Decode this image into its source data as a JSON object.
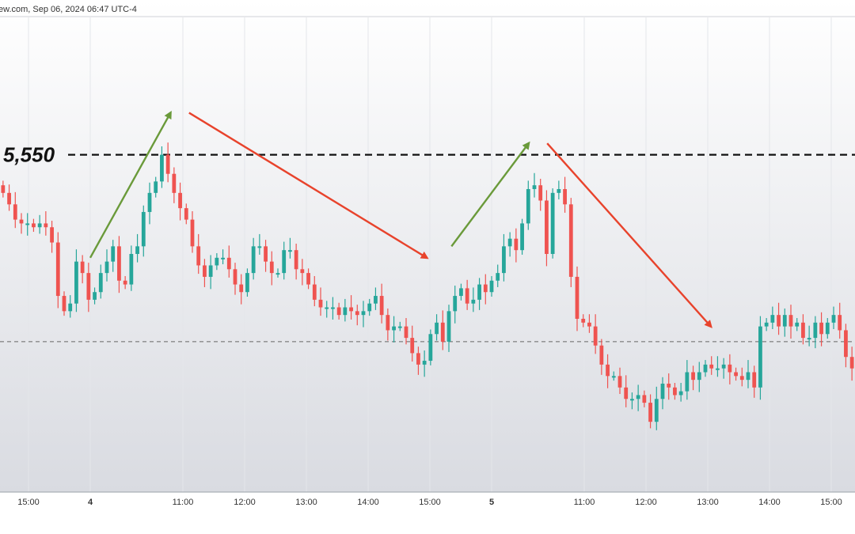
{
  "header": {
    "source_text": "ew.com, Sep 06, 2024 06:47 UTC-4"
  },
  "colors": {
    "up": "#26a69a",
    "down": "#ef5350",
    "arrow_up": "#6a9a3a",
    "arrow_down": "#e8432c",
    "level_line": "#111111",
    "ref_line": "#666666"
  },
  "chart_data": {
    "type": "candlestick",
    "title": "",
    "xlabel": "",
    "ylabel": "",
    "ylim": [
      5462,
      5586
    ],
    "x_ticks": [
      {
        "label": "15:00",
        "x": -1,
        "bold": false
      },
      {
        "label": "4",
        "x": 0,
        "bold": true
      },
      {
        "label": "11:00",
        "x": 1.5,
        "bold": false
      },
      {
        "label": "12:00",
        "x": 2.5,
        "bold": false
      },
      {
        "label": "13:00",
        "x": 3.5,
        "bold": false
      },
      {
        "label": "14:00",
        "x": 4.5,
        "bold": false
      },
      {
        "label": "15:00",
        "x": 5.5,
        "bold": false
      },
      {
        "label": "5",
        "x": 6.5,
        "bold": true
      },
      {
        "label": "11:00",
        "x": 8.0,
        "bold": false
      },
      {
        "label": "12:00",
        "x": 9.0,
        "bold": false
      },
      {
        "label": "13:00",
        "x": 10.0,
        "bold": false
      },
      {
        "label": "14:00",
        "x": 11.0,
        "bold": false
      },
      {
        "label": "15:00",
        "x": 12.0,
        "bold": false
      }
    ],
    "level_lines": [
      {
        "value": 5550,
        "label": "5,550",
        "style": "dashed-bold"
      },
      {
        "value": 5501,
        "label": "",
        "style": "dashed-thin"
      }
    ],
    "close_series": [
      5540,
      5537,
      5533,
      5532,
      5532,
      5531,
      5532,
      5531,
      5527,
      5513,
      5509,
      5511,
      5522,
      5519,
      5512,
      5514,
      5519,
      5522,
      5526,
      5517,
      5516,
      5524,
      5526,
      5535,
      5540,
      5543,
      5550,
      5545,
      5540,
      5536,
      5533,
      5526,
      5521,
      5518,
      5521,
      5523,
      5523,
      5520,
      5516,
      5514,
      5519,
      5526,
      5526,
      5522,
      5519,
      5519,
      5525,
      5525,
      5520,
      5519,
      5516,
      5512,
      5510,
      5510,
      5510,
      5508,
      5510,
      5509,
      5508,
      5509,
      5511,
      5513,
      5508,
      5504,
      5505,
      5505,
      5502,
      5498,
      5495,
      5496,
      5503,
      5506,
      5501,
      5509,
      5513,
      5515,
      5511,
      5512,
      5516,
      5514,
      5517,
      5519,
      5526,
      5528,
      5525,
      5532,
      5541,
      5542,
      5538,
      5524,
      5540,
      5541,
      5537,
      5518,
      5507,
      5506,
      5505,
      5500,
      5495,
      5492,
      5492,
      5489,
      5486,
      5486,
      5487,
      5485,
      5480,
      5486,
      5490,
      5489,
      5487,
      5488,
      5493,
      5491,
      5493,
      5495,
      5494,
      5494,
      5495,
      5493,
      5492,
      5491,
      5493,
      5489,
      5505,
      5506,
      5508,
      5505,
      5508,
      5505,
      5506,
      5502,
      5502,
      5506,
      5503,
      5506,
      5508,
      5504,
      5497,
      5494
    ],
    "annotations": [
      {
        "type": "arrow",
        "color": "arrow_up",
        "from": [
          0,
          5523
        ],
        "to": [
          1.3,
          5561
        ]
      },
      {
        "type": "arrow",
        "color": "arrow_down",
        "from": [
          1.6,
          5561
        ],
        "to": [
          5.45,
          5523
        ]
      },
      {
        "type": "arrow",
        "color": "arrow_up",
        "from": [
          5.85,
          5526
        ],
        "to": [
          7.1,
          5553
        ]
      },
      {
        "type": "arrow",
        "color": "arrow_down",
        "from": [
          7.4,
          5553
        ],
        "to": [
          10.05,
          5505
        ]
      }
    ]
  }
}
